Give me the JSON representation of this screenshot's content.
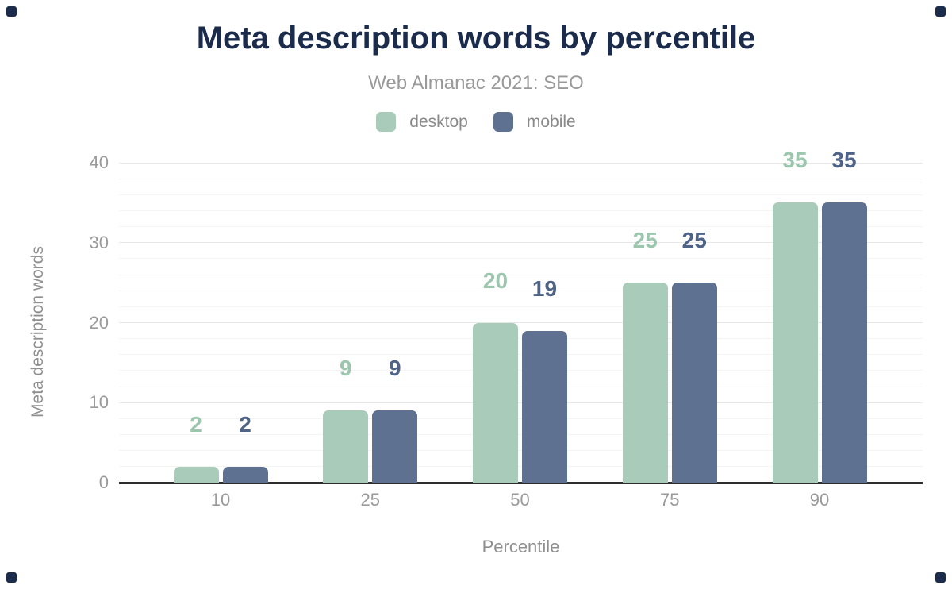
{
  "header": {
    "title": "Meta description words by percentile",
    "subtitle": "Web Almanac 2021: SEO"
  },
  "legend": [
    {
      "label": "desktop",
      "color": "#a8ccb9"
    },
    {
      "label": "mobile",
      "color": "#5f7190"
    }
  ],
  "chart_data": {
    "type": "bar",
    "title": "Meta description words by percentile",
    "subtitle": "Web Almanac 2021: SEO",
    "categories": [
      "10",
      "25",
      "50",
      "75",
      "90"
    ],
    "series": [
      {
        "name": "desktop",
        "values": [
          2,
          9,
          20,
          25,
          35
        ],
        "color": "#a8ccb9",
        "label_color": "#9dc6af"
      },
      {
        "name": "mobile",
        "values": [
          2,
          9,
          19,
          25,
          35
        ],
        "color": "#5f7190",
        "label_color": "#4f6387"
      }
    ],
    "xlabel": "Percentile",
    "ylabel": "Meta description words",
    "ylim": [
      0,
      40
    ],
    "yticks": [
      0,
      10,
      20,
      30,
      40
    ],
    "minor_grid_step": 2,
    "grid": true,
    "legend_position": "top",
    "value_labels_shown": true
  },
  "colors": {
    "title": "#1b2b4b",
    "subtitle": "#999999",
    "axis_line": "#2e2e2e",
    "tick_label": "#9a9a9a",
    "axis_title": "#8f8f8f",
    "major_grid": "#e7e7e7",
    "minor_grid": "#f4f4f4",
    "corner_marker": "#1b2b4b"
  }
}
